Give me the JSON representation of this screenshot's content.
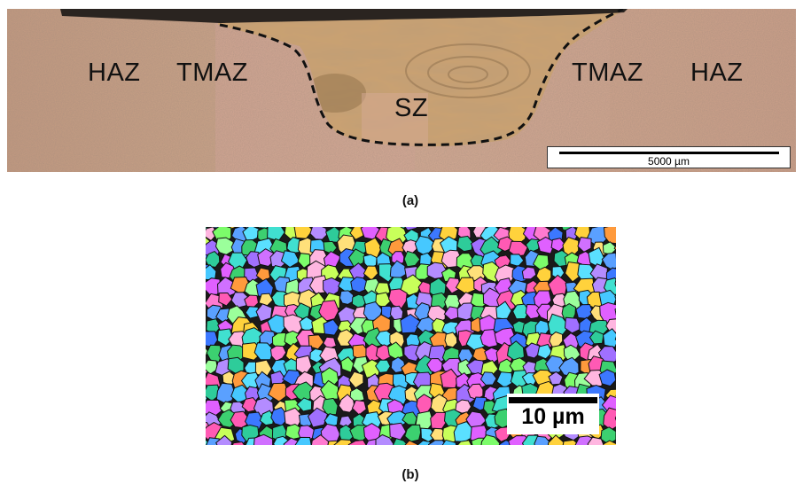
{
  "panel_a": {
    "zones": {
      "haz_left": "HAZ",
      "tmaz_left": "TMAZ",
      "sz": "SZ",
      "tmaz_right": "TMAZ",
      "haz_right": "HAZ"
    },
    "scale_bar": "5000 µm",
    "caption": "(a)"
  },
  "panel_b": {
    "scale_bar": "10 µm",
    "caption": "(b)"
  },
  "colors": {
    "macro_base": "#c8a58a",
    "macro_tmaz": "#dca79a",
    "macro_sz": "#c99f70",
    "boundary_line": "#111111"
  }
}
